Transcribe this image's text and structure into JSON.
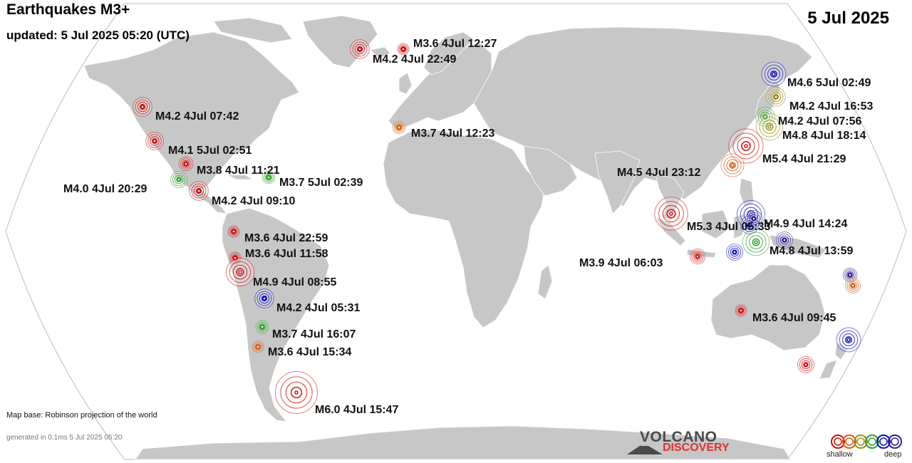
{
  "header": {
    "title": "Earthquakes M3+",
    "updated": "updated:  5 Jul 2025 05:20 (UTC)",
    "date": "5 Jul 2025"
  },
  "footer": {
    "map_base": "Map base: Robinson projection of the world",
    "generated": "generated in 0.1ms  5 Jul 2025 05:20"
  },
  "logo": {
    "line1": "VOLCANO",
    "line2": "DISCOVERY"
  },
  "legend": {
    "shallow": "shallow",
    "deep": "deep",
    "colors": [
      "#d01010",
      "#d06018",
      "#a09018",
      "#30a030",
      "#1010c0",
      "#302090"
    ]
  },
  "depth_colors": {
    "shallow": "#d01010",
    "mid-shallow": "#d06018",
    "mid": "#a09018",
    "intermediate": "#30a030",
    "deep": "#1010c0",
    "very-deep": "#302090"
  },
  "quakes": [
    {
      "label": "M3.6  4Jul 12:27",
      "mag": 3.6,
      "depth": "shallow"
    },
    {
      "label": "M4.2  4Jul 22:49",
      "mag": 4.2,
      "depth": "shallow"
    },
    {
      "label": "M4.2  4Jul 07:42",
      "mag": 4.2,
      "depth": "shallow"
    },
    {
      "label": "M4.1  5Jul 02:51",
      "mag": 4.1,
      "depth": "shallow"
    },
    {
      "label": "M3.8  4Jul 11:21",
      "mag": 3.8,
      "depth": "shallow"
    },
    {
      "label": "M3.7  5Jul 02:39",
      "mag": 3.7,
      "depth": "intermediate"
    },
    {
      "label": "M4.0  4Jul 20:29",
      "mag": 4.0,
      "depth": "intermediate"
    },
    {
      "label": "M4.2  4Jul 09:10",
      "mag": 4.2,
      "depth": "shallow"
    },
    {
      "label": "M3.6  4Jul 22:59",
      "mag": 3.6,
      "depth": "shallow"
    },
    {
      "label": "M3.6  4Jul 11:58",
      "mag": 3.6,
      "depth": "shallow"
    },
    {
      "label": "M4.9  4Jul 08:55",
      "mag": 4.9,
      "depth": "shallow"
    },
    {
      "label": "M4.2  4Jul 05:31",
      "mag": 4.2,
      "depth": "deep"
    },
    {
      "label": "M3.7  4Jul 16:07",
      "mag": 3.7,
      "depth": "intermediate"
    },
    {
      "label": "M3.6  4Jul 15:34",
      "mag": 3.6,
      "depth": "mid-shallow"
    },
    {
      "label": "M6.0  4Jul 15:47",
      "mag": 6.0,
      "depth": "shallow"
    },
    {
      "label": "M3.7  4Jul 12:23",
      "mag": 3.7,
      "depth": "mid-shallow"
    },
    {
      "label": "M4.6  5Jul 02:49",
      "mag": 4.6,
      "depth": "deep"
    },
    {
      "label": "M4.2  4Jul 16:53",
      "mag": 4.2,
      "depth": "mid"
    },
    {
      "label": "M4.2  4Jul 07:56",
      "mag": 4.2,
      "depth": "intermediate"
    },
    {
      "label": "M4.8  4Jul 18:14",
      "mag": 4.8,
      "depth": "mid"
    },
    {
      "label": "M5.4  4Jul 21:29",
      "mag": 5.4,
      "depth": "shallow"
    },
    {
      "label": "M4.5  4Jul 23:12",
      "mag": 4.5,
      "depth": "mid-shallow"
    },
    {
      "label": "M5.3  4Jul 05:33",
      "mag": 5.3,
      "depth": "shallow"
    },
    {
      "label": "M4.9  4Jul 14:24",
      "mag": 4.9,
      "depth": "deep"
    },
    {
      "label": "M4.8  4Jul 13:59",
      "mag": 4.8,
      "depth": "intermediate"
    },
    {
      "label": "M3.9  4Jul 06:03",
      "mag": 3.9,
      "depth": "shallow"
    },
    {
      "label": "M3.6  4Jul 09:45",
      "mag": 3.6,
      "depth": "shallow"
    },
    {
      "label": "",
      "mag": 4.1,
      "depth": "deep"
    },
    {
      "label": "",
      "mag": 4.0,
      "depth": "very-deep"
    },
    {
      "label": "",
      "mag": 4.0,
      "depth": "deep"
    },
    {
      "label": "",
      "mag": 3.8,
      "depth": "very-deep"
    },
    {
      "label": "",
      "mag": 3.9,
      "depth": "mid-shallow"
    },
    {
      "label": "",
      "mag": 4.0,
      "depth": "shallow"
    },
    {
      "label": "",
      "mag": 4.6,
      "depth": "deep"
    },
    {
      "label": "",
      "mag": 4.0,
      "depth": "very-deep"
    }
  ]
}
